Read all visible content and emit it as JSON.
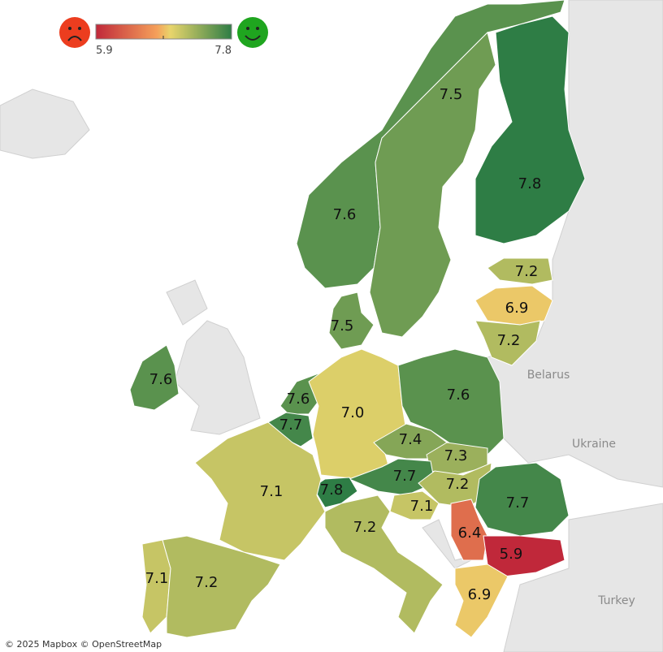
{
  "legend": {
    "min": 5.9,
    "max": 7.8
  },
  "regions": [
    {
      "value": "7.6"
    },
    {
      "value": "7.5"
    },
    {
      "value": "7.8"
    },
    {
      "value": "7.2"
    },
    {
      "value": "6.9"
    },
    {
      "value": "7.2"
    },
    {
      "value": "7.5"
    },
    {
      "value": "7.6"
    },
    {
      "value": "7.6"
    },
    {
      "value": "7.7"
    },
    {
      "value": "7.0"
    },
    {
      "value": "7.6"
    },
    {
      "value": "7.4"
    },
    {
      "value": "7.3"
    },
    {
      "value": "7.7"
    },
    {
      "value": "7.2"
    },
    {
      "value": "7.8"
    },
    {
      "value": "7.1"
    },
    {
      "value": "7.1"
    },
    {
      "value": "7.7"
    },
    {
      "value": "6.4"
    },
    {
      "value": "5.9"
    },
    {
      "value": "7.2"
    },
    {
      "value": "7.1"
    },
    {
      "value": "7.2"
    },
    {
      "value": "6.9"
    }
  ],
  "place_labels": [
    "Belarus",
    "Ukraine",
    "Turkey"
  ],
  "attribution": "© 2025 Mapbox © OpenStreetMap"
}
